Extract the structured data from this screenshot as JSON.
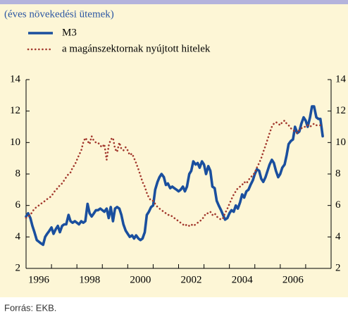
{
  "chart_data": {
    "type": "line",
    "subtitle": "(éves növekedési ütemek)",
    "source": "Forrás: EKB.",
    "xlim": [
      1996,
      2008
    ],
    "xticks": [
      {
        "value": 1996,
        "label": "1996"
      },
      {
        "value": 1997,
        "label": null
      },
      {
        "value": 1998,
        "label": "1998"
      },
      {
        "value": 1999,
        "label": null
      },
      {
        "value": 2000,
        "label": "2000"
      },
      {
        "value": 2001,
        "label": null
      },
      {
        "value": 2002,
        "label": "2002"
      },
      {
        "value": 2003,
        "label": null
      },
      {
        "value": 2004,
        "label": "2004"
      },
      {
        "value": 2005,
        "label": null
      },
      {
        "value": 2006,
        "label": "2006"
      },
      {
        "value": 2007,
        "label": null
      }
    ],
    "ylim": [
      2,
      14
    ],
    "yticks": [
      2,
      4,
      6,
      8,
      10,
      12,
      14
    ],
    "y2lim": [
      2,
      14
    ],
    "y2ticks": [
      2,
      4,
      6,
      8,
      10,
      12,
      14
    ],
    "x": [
      1996,
      1996.08,
      1996.17,
      1996.25,
      1996.33,
      1996.42,
      1996.5,
      1996.58,
      1996.67,
      1996.75,
      1996.83,
      1996.92,
      1997,
      1997.08,
      1997.17,
      1997.25,
      1997.33,
      1997.42,
      1997.5,
      1997.58,
      1997.67,
      1997.75,
      1997.83,
      1997.92,
      1998,
      1998.08,
      1998.17,
      1998.25,
      1998.33,
      1998.42,
      1998.5,
      1998.58,
      1998.67,
      1998.75,
      1998.83,
      1998.92,
      1999,
      1999.08,
      1999.17,
      1999.25,
      1999.33,
      1999.42,
      1999.5,
      1999.58,
      1999.67,
      1999.75,
      1999.83,
      1999.92,
      2000,
      2000.08,
      2000.17,
      2000.25,
      2000.33,
      2000.42,
      2000.5,
      2000.58,
      2000.67,
      2000.75,
      2000.83,
      2000.92,
      2001,
      2001.08,
      2001.17,
      2001.25,
      2001.33,
      2001.42,
      2001.5,
      2001.58,
      2001.67,
      2001.75,
      2001.83,
      2001.92,
      2002,
      2002.08,
      2002.17,
      2002.25,
      2002.33,
      2002.42,
      2002.5,
      2002.58,
      2002.67,
      2002.75,
      2002.83,
      2002.92,
      2003,
      2003.08,
      2003.17,
      2003.25,
      2003.33,
      2003.42,
      2003.5,
      2003.58,
      2003.67,
      2003.75,
      2003.83,
      2003.92,
      2004,
      2004.08,
      2004.17,
      2004.25,
      2004.33,
      2004.42,
      2004.5,
      2004.58,
      2004.67,
      2004.75,
      2004.83,
      2004.92,
      2005,
      2005.08,
      2005.17,
      2005.25,
      2005.33,
      2005.42,
      2005.5,
      2005.58,
      2005.67,
      2005.75,
      2005.83,
      2005.92,
      2006,
      2006.08,
      2006.17,
      2006.25,
      2006.33,
      2006.42,
      2006.5,
      2006.58,
      2006.67,
      2006.75,
      2006.83,
      2006.92,
      2007,
      2007.08,
      2007.17,
      2007.25,
      2007.33,
      2007.42,
      2007.5,
      2007.58,
      2007.67
    ],
    "series": [
      {
        "name": "M3",
        "color": "#1a4f9e",
        "style": "solid",
        "values": [
          5.3,
          5.5,
          5.2,
          4.7,
          4.3,
          3.8,
          3.7,
          3.6,
          3.5,
          4.0,
          4.2,
          4.4,
          4.6,
          4.2,
          4.5,
          4.7,
          4.3,
          4.7,
          4.8,
          4.8,
          5.4,
          5.0,
          4.9,
          5.0,
          4.9,
          4.8,
          5.0,
          4.9,
          5.0,
          6.1,
          5.5,
          5.3,
          5.5,
          5.7,
          5.7,
          5.8,
          5.7,
          5.6,
          5.8,
          5.2,
          5.9,
          5.0,
          5.8,
          5.9,
          5.8,
          5.4,
          4.8,
          4.4,
          4.2,
          4.0,
          4.1,
          3.9,
          4.1,
          3.9,
          3.8,
          3.9,
          4.3,
          5.4,
          5.6,
          5.9,
          6.0,
          7.0,
          7.5,
          7.8,
          8.0,
          7.8,
          7.3,
          7.4,
          7.1,
          7.2,
          7.1,
          7.0,
          6.9,
          7.0,
          7.2,
          6.9,
          7.2,
          8.0,
          8.2,
          8.8,
          8.6,
          8.7,
          8.4,
          8.8,
          8.6,
          8.0,
          8.5,
          8.2,
          7.2,
          7.1,
          6.3,
          6.0,
          5.7,
          5.4,
          5.1,
          5.2,
          5.5,
          5.7,
          5.6,
          6.0,
          5.8,
          6.2,
          6.7,
          6.5,
          6.9,
          7.0,
          7.3,
          7.6,
          8.0,
          8.3,
          8.2,
          7.7,
          7.5,
          7.8,
          8.2,
          8.6,
          8.9,
          8.7,
          8.2,
          7.8,
          8.0,
          8.4,
          8.6,
          9.2,
          9.9,
          10.1,
          10.2,
          11.0,
          10.6,
          10.7,
          11.2,
          11.6,
          11.4,
          11.0,
          11.6,
          12.3,
          12.3,
          11.6,
          11.5,
          11.5,
          10.4
        ]
      },
      {
        "name": "a magánszektornak nyújtott hitelek",
        "color": "#a3392e",
        "style": "dotted",
        "values": [
          5.2,
          5.3,
          5.4,
          5.6,
          5.8,
          5.9,
          6.0,
          6.1,
          6.2,
          6.3,
          6.4,
          6.5,
          6.6,
          6.8,
          7.0,
          7.1,
          7.3,
          7.4,
          7.6,
          7.8,
          8.0,
          8.1,
          8.4,
          8.6,
          8.9,
          9.2,
          9.5,
          10.0,
          10.3,
          10.1,
          9.9,
          10.4,
          10.1,
          10.0,
          10.0,
          9.8,
          9.7,
          9.9,
          8.9,
          9.8,
          10.2,
          10.3,
          9.6,
          9.4,
          10.0,
          9.6,
          9.5,
          9.7,
          9.5,
          9.2,
          9.3,
          9.0,
          8.7,
          8.3,
          7.9,
          7.5,
          7.2,
          6.8,
          6.5,
          6.3,
          6.3,
          6.1,
          5.9,
          5.8,
          5.7,
          5.6,
          5.5,
          5.4,
          5.4,
          5.3,
          5.2,
          5.1,
          5.0,
          4.9,
          4.8,
          4.7,
          4.8,
          4.7,
          4.8,
          4.7,
          4.8,
          4.9,
          5.0,
          5.1,
          5.3,
          5.5,
          5.5,
          5.6,
          5.4,
          5.5,
          5.3,
          5.2,
          5.1,
          5.2,
          5.5,
          5.8,
          6.1,
          6.4,
          6.7,
          6.9,
          7.1,
          7.2,
          7.3,
          7.5,
          7.4,
          7.6,
          7.8,
          7.9,
          8.1,
          8.4,
          8.7,
          9.0,
          9.4,
          9.8,
          10.2,
          10.6,
          11.0,
          11.2,
          11.3,
          11.2,
          11.1,
          11.3,
          11.4,
          11.2,
          11.1,
          10.9,
          10.8,
          10.7,
          10.6,
          10.8,
          10.9,
          11.0,
          11.0,
          11.1,
          11.0,
          11.1,
          11.2,
          11.1,
          11.1,
          11.1,
          11.1
        ]
      }
    ]
  }
}
